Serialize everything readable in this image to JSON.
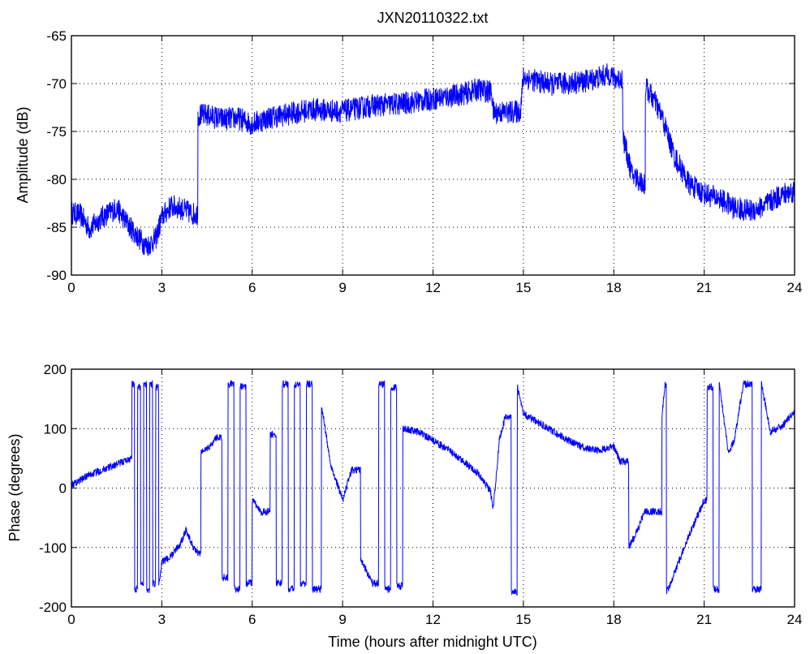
{
  "chart_data": [
    {
      "type": "line",
      "title": "JXN20110322.txt",
      "xlabel": "",
      "ylabel": "Amplitude (dB)",
      "xlim": [
        0,
        24
      ],
      "ylim": [
        -90,
        -65
      ],
      "xticks": [
        0,
        3,
        6,
        9,
        12,
        15,
        18,
        21,
        24
      ],
      "yticks": [
        -90,
        -85,
        -80,
        -75,
        -70,
        -65
      ],
      "grid": true,
      "color": "#0000ff",
      "series": [
        {
          "x": [
            0,
            0.3,
            0.6,
            1.0,
            1.5,
            1.9,
            2.2,
            2.5,
            2.8,
            3.0,
            3.3,
            3.6,
            4.0,
            4.15,
            4.2,
            4.5,
            5.0,
            5.5,
            6.0,
            6.5,
            7.0,
            8.0,
            9.0,
            10.0,
            11.0,
            12.0,
            13.0,
            13.5,
            13.95,
            14.0,
            14.5,
            14.9,
            15.0,
            15.5,
            16.0,
            17.0,
            17.9,
            18.0,
            18.3,
            18.6,
            19.0,
            19.05,
            19.3,
            19.6,
            20.0,
            20.5,
            21.0,
            21.5,
            22.0,
            22.5,
            23.0,
            23.5,
            24.0
          ],
          "y": [
            -83.5,
            -83.7,
            -85.2,
            -84.0,
            -83.0,
            -84.8,
            -86.0,
            -87.0,
            -86.2,
            -84.0,
            -82.8,
            -83.0,
            -83.6,
            -83.6,
            -73.3,
            -73.3,
            -73.7,
            -73.6,
            -74.2,
            -73.6,
            -73.3,
            -72.7,
            -72.9,
            -72.3,
            -72.1,
            -71.6,
            -71.1,
            -70.6,
            -70.9,
            -73.0,
            -73.0,
            -72.9,
            -69.3,
            -69.8,
            -70.1,
            -69.8,
            -69.0,
            -69.5,
            -75.5,
            -79.5,
            -80.5,
            -70.4,
            -71.5,
            -73.5,
            -77.5,
            -80.5,
            -81.5,
            -82.0,
            -83.0,
            -83.3,
            -82.8,
            -81.7,
            -81.2
          ]
        }
      ]
    },
    {
      "type": "line",
      "title": "",
      "xlabel": "Time (hours after midnight UTC)",
      "ylabel": "Phase (degrees)",
      "xlim": [
        0,
        24
      ],
      "ylim": [
        -200,
        200
      ],
      "xticks": [
        0,
        3,
        6,
        9,
        12,
        15,
        18,
        21,
        24
      ],
      "yticks": [
        -200,
        -100,
        0,
        100,
        200
      ],
      "grid": true,
      "color": "#0000ff",
      "series": [
        {
          "x": [
            0,
            0.5,
            1.0,
            1.5,
            2.0,
            2.01,
            2.1,
            2.2,
            2.3,
            2.4,
            2.5,
            2.6,
            2.7,
            2.8,
            2.9,
            3.0,
            3.3,
            3.6,
            3.8,
            4.0,
            4.2,
            4.3,
            4.6,
            4.8,
            5.0,
            5.2,
            5.4,
            5.6,
            5.8,
            6.0,
            6.3,
            6.6,
            6.8,
            7.0,
            7.2,
            7.4,
            7.6,
            7.8,
            8.0,
            8.3,
            8.6,
            9.0,
            9.3,
            9.6,
            10.0,
            10.2,
            10.4,
            10.6,
            10.8,
            11.0,
            11.5,
            12.0,
            12.5,
            13.0,
            13.5,
            13.9,
            14.0,
            14.2,
            14.4,
            14.6,
            14.8,
            15.0,
            15.5,
            16.0,
            16.5,
            17.0,
            17.5,
            18.0,
            18.2,
            18.5,
            18.8,
            19.0,
            19.6,
            19.7,
            19.75,
            19.8,
            20.5,
            21.0,
            21.1,
            21.3,
            21.5,
            21.8,
            22.0,
            22.3,
            22.6,
            22.9,
            23.2,
            23.6,
            24.0
          ],
          "y": [
            5,
            20,
            30,
            40,
            50,
            175,
            -170,
            170,
            -160,
            175,
            -170,
            175,
            -160,
            170,
            -165,
            -125,
            -115,
            -95,
            -70,
            -95,
            -110,
            60,
            70,
            85,
            -150,
            175,
            -170,
            170,
            -160,
            -20,
            -40,
            90,
            -160,
            175,
            -170,
            175,
            -160,
            175,
            -170,
            140,
            40,
            -20,
            30,
            -120,
            -160,
            175,
            -170,
            170,
            -165,
            100,
            95,
            80,
            65,
            45,
            25,
            -5,
            -35,
            80,
            120,
            -175,
            170,
            125,
            110,
            95,
            80,
            68,
            63,
            70,
            45,
            -100,
            -70,
            -40,
            120,
            175,
            -175,
            -170,
            -80,
            -20,
            170,
            -170,
            175,
            60,
            80,
            175,
            -170,
            175,
            95,
            105,
            130
          ]
        }
      ]
    }
  ]
}
